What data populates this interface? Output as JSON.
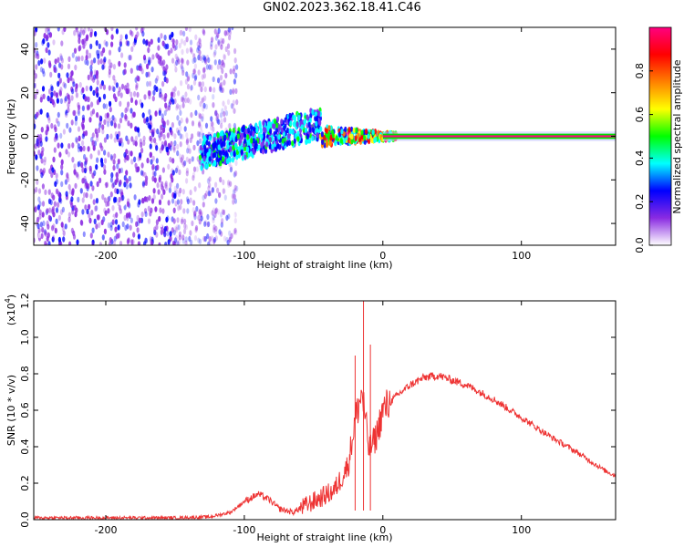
{
  "title": "GN02.2023.362.18.41.C46",
  "colors": {
    "snr_line": "#ee3333",
    "spectrogram_scatter": "#7a2ff0",
    "spectrogram_core": "#ee3333"
  },
  "chart_data": [
    {
      "type": "heatmap",
      "xlabel": "Height of straight line (km)",
      "ylabel": "Frequency (Hz)",
      "xlim": [
        -252,
        168
      ],
      "ylim": [
        -50,
        50
      ],
      "xticks": [
        -200,
        -100,
        0,
        100
      ],
      "xtick_labels": [
        "-200",
        "-100",
        "0",
        "100"
      ],
      "yticks": [
        -40,
        -20,
        0,
        20,
        40
      ],
      "ytick_labels": [
        "-40",
        "-20",
        "0",
        "20",
        "40"
      ],
      "colorbar": {
        "label": "Normalized spectral amplitude",
        "range": [
          0,
          1
        ],
        "ticks": [
          0.0,
          0.2,
          0.4,
          0.6,
          0.8
        ],
        "tick_labels": [
          "0.0",
          "0.2",
          "0.4",
          "0.6",
          "0.8"
        ],
        "colormap": [
          "#ffffff",
          "#8a2be2",
          "#0000ff",
          "#00ffff",
          "#00ff00",
          "#ffff00",
          "#ff8000",
          "#ff0000",
          "#ff0080"
        ]
      },
      "regions": [
        {
          "x_range": [
            -252,
            -105
          ],
          "y_range": [
            -50,
            50
          ],
          "level": 0.15,
          "pattern": "broadband scatter"
        },
        {
          "x_range": [
            -132,
            -45
          ],
          "y_range": [
            -15,
            17
          ],
          "level": 0.3,
          "pattern": "rising band"
        },
        {
          "x_range": [
            -45,
            10
          ],
          "y_range": [
            -4,
            5
          ],
          "level": 0.6,
          "pattern": "converging band"
        },
        {
          "x_range": [
            0,
            168
          ],
          "y_range": [
            -1,
            1
          ],
          "level": 0.95,
          "pattern": "narrow tone at 0 Hz"
        }
      ]
    },
    {
      "type": "line",
      "xlabel": "Height of straight line (km)",
      "ylabel": "SNR (10 * v/v)",
      "yscale_label": "(x10",
      "yscale_exponent": "4",
      "xlim": [
        -252,
        168
      ],
      "ylim": [
        0,
        1.2
      ],
      "xticks": [
        -200,
        -100,
        0,
        100
      ],
      "xtick_labels": [
        "-200",
        "-100",
        "0",
        "100"
      ],
      "yticks": [
        0.0,
        0.2,
        0.4,
        0.6,
        0.8,
        1.0,
        1.2
      ],
      "ytick_labels": [
        "0.0",
        "0.2",
        "0.4",
        "0.6",
        "0.8",
        "1.0",
        "1.2"
      ],
      "series": [
        {
          "x": [
            -252,
            -200,
            -150,
            -125,
            -110,
            -100,
            -90,
            -82,
            -75,
            -65,
            -55,
            -45,
            -35,
            -25,
            -20,
            -15,
            -10,
            -5,
            0,
            10,
            20,
            30,
            40,
            60,
            80,
            100,
            120,
            140,
            160,
            168
          ],
          "y": [
            0.01,
            0.01,
            0.01,
            0.015,
            0.04,
            0.1,
            0.14,
            0.11,
            0.06,
            0.04,
            0.08,
            0.12,
            0.16,
            0.3,
            0.55,
            0.7,
            0.38,
            0.45,
            0.6,
            0.68,
            0.74,
            0.78,
            0.79,
            0.74,
            0.66,
            0.56,
            0.46,
            0.37,
            0.27,
            0.24
          ]
        }
      ],
      "peaks": [
        {
          "x": -20,
          "y": 0.9
        },
        {
          "x": -14,
          "y": 1.2
        },
        {
          "x": -9,
          "y": 0.96
        }
      ]
    }
  ]
}
